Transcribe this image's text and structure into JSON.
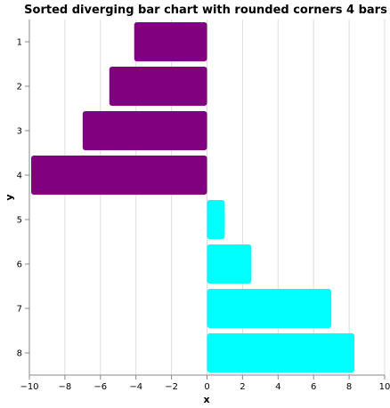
{
  "chart_data": {
    "type": "bar",
    "orientation": "horizontal",
    "title": "Sorted diverging bar chart with rounded corners 4 bars",
    "xlabel": "x",
    "ylabel": "y",
    "xlim": [
      -10,
      10
    ],
    "x_ticks": [
      -10,
      -8,
      -6,
      -4,
      -2,
      0,
      2,
      4,
      6,
      8,
      10
    ],
    "categories": [
      "1",
      "2",
      "3",
      "4",
      "5",
      "6",
      "7",
      "8"
    ],
    "values": [
      -4.1,
      -5.5,
      -7.0,
      -9.9,
      1.0,
      2.5,
      7.0,
      8.3
    ],
    "colors": {
      "negative": "#800080",
      "positive": "#00ffff"
    },
    "grid": true
  }
}
